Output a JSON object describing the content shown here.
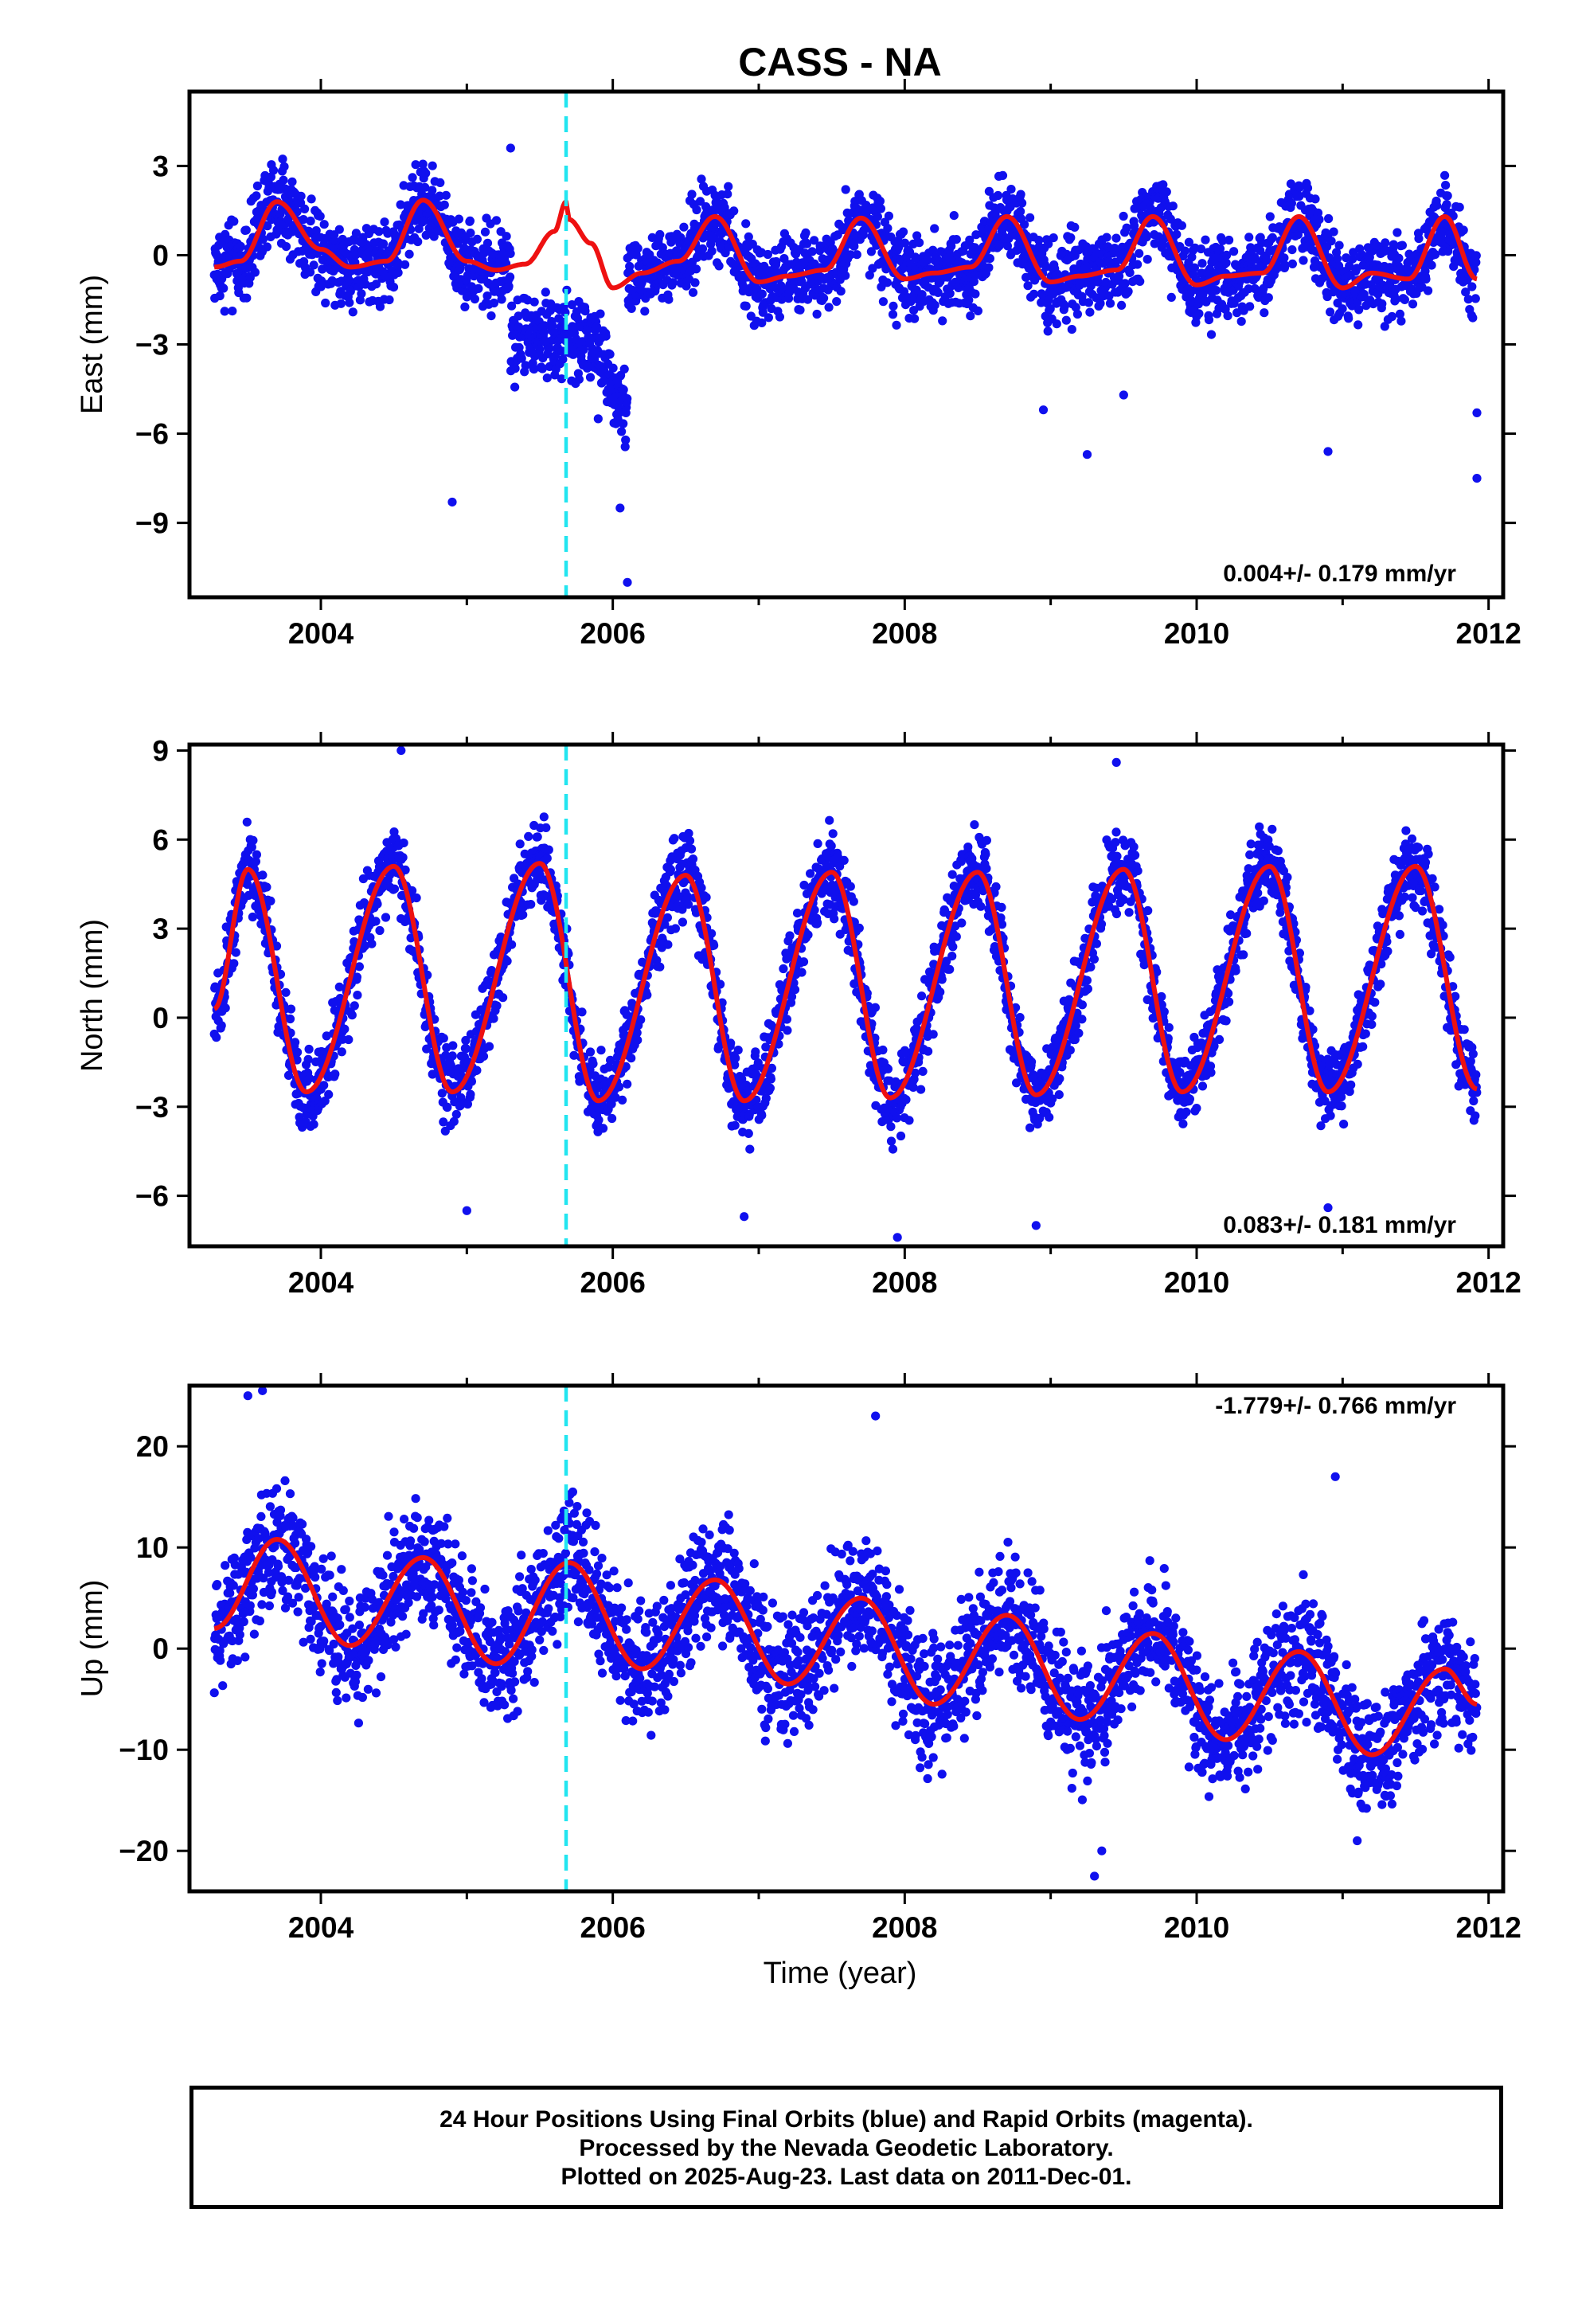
{
  "title": "CASS - NA",
  "xlabel": "Time (year)",
  "footer": {
    "line1": "24 Hour Positions Using Final Orbits (blue) and Rapid Orbits (magenta).",
    "line2": "Processed by the Nevada Geodetic Laboratory.",
    "line3": "Plotted on 2025-Aug-23. Last data on 2011-Dec-01."
  },
  "colors": {
    "data": "#1010ee",
    "model": "#ee1111",
    "event_line": "#22e5f0"
  },
  "chart_data": [
    {
      "type": "scatter",
      "panel": "east",
      "ylabel": "East (mm)",
      "rate_label": "0.004+/- 0.179 mm/yr",
      "xlim": [
        2003.1,
        2012.1
      ],
      "ylim": [
        -11.5,
        5.5
      ],
      "xticks": [
        "2004",
        "2006",
        "2008",
        "2010",
        "2012"
      ],
      "yticks": [
        "3",
        "0",
        "−3",
        "−6",
        "−9"
      ],
      "ytick_values": [
        3,
        0,
        -3,
        -6,
        -9
      ],
      "event_line_x": 2005.68,
      "data_range": [
        2003.27,
        2011.92
      ],
      "model_points": [
        [
          2003.27,
          -0.4
        ],
        [
          2003.45,
          -0.2
        ],
        [
          2003.7,
          1.8
        ],
        [
          2004.0,
          0.2
        ],
        [
          2004.2,
          -0.4
        ],
        [
          2004.45,
          -0.2
        ],
        [
          2004.7,
          1.85
        ],
        [
          2005.0,
          -0.2
        ],
        [
          2005.2,
          -0.5
        ],
        [
          2005.4,
          -0.3
        ],
        [
          2005.6,
          0.8
        ],
        [
          2005.68,
          1.8
        ],
        [
          2005.7,
          1.2
        ],
        [
          2005.85,
          0.4
        ],
        [
          2006.0,
          -1.1
        ],
        [
          2006.2,
          -0.6
        ],
        [
          2006.45,
          -0.2
        ],
        [
          2006.7,
          1.3
        ],
        [
          2007.0,
          -0.9
        ],
        [
          2007.2,
          -0.7
        ],
        [
          2007.45,
          -0.5
        ],
        [
          2007.7,
          1.25
        ],
        [
          2008.0,
          -0.8
        ],
        [
          2008.2,
          -0.6
        ],
        [
          2008.45,
          -0.4
        ],
        [
          2008.7,
          1.3
        ],
        [
          2009.0,
          -0.9
        ],
        [
          2009.2,
          -0.7
        ],
        [
          2009.45,
          -0.5
        ],
        [
          2009.7,
          1.3
        ],
        [
          2010.0,
          -1.0
        ],
        [
          2010.2,
          -0.7
        ],
        [
          2010.45,
          -0.6
        ],
        [
          2010.7,
          1.3
        ],
        [
          2011.0,
          -1.1
        ],
        [
          2011.2,
          -0.6
        ],
        [
          2011.45,
          -0.8
        ],
        [
          2011.7,
          1.3
        ],
        [
          2011.92,
          -0.8
        ]
      ],
      "outliers": [
        [
          2004.9,
          -8.3
        ],
        [
          2005.3,
          3.6
        ],
        [
          2005.9,
          -5.5
        ],
        [
          2006.05,
          -8.5
        ],
        [
          2006.1,
          -11.0
        ],
        [
          2008.95,
          -5.2
        ],
        [
          2009.25,
          -6.7
        ],
        [
          2009.5,
          -4.7
        ],
        [
          2010.9,
          -6.6
        ],
        [
          2011.92,
          -7.5
        ],
        [
          2011.92,
          -5.3
        ]
      ]
    },
    {
      "type": "scatter",
      "panel": "north",
      "ylabel": "North (mm)",
      "rate_label": "0.083+/- 0.181 mm/yr",
      "xlim": [
        2003.1,
        2012.1
      ],
      "ylim": [
        -7.7,
        9.2
      ],
      "xticks": [
        "2004",
        "2006",
        "2008",
        "2010",
        "2012"
      ],
      "yticks": [
        "9",
        "6",
        "3",
        "0",
        "−3",
        "−6"
      ],
      "ytick_values": [
        9,
        6,
        3,
        0,
        -3,
        -6
      ],
      "event_line_x": 2005.68,
      "data_range": [
        2003.27,
        2011.92
      ],
      "model_points": [
        [
          2003.27,
          0.3
        ],
        [
          2003.5,
          5.0
        ],
        [
          2003.9,
          -2.5
        ],
        [
          2004.5,
          5.1
        ],
        [
          2004.9,
          -2.5
        ],
        [
          2005.5,
          5.2
        ],
        [
          2005.9,
          -2.8
        ],
        [
          2006.5,
          4.8
        ],
        [
          2006.9,
          -2.8
        ],
        [
          2007.5,
          4.9
        ],
        [
          2007.9,
          -2.7
        ],
        [
          2008.5,
          4.9
        ],
        [
          2008.9,
          -2.6
        ],
        [
          2009.5,
          5.0
        ],
        [
          2009.9,
          -2.5
        ],
        [
          2010.5,
          5.1
        ],
        [
          2010.9,
          -2.5
        ],
        [
          2011.5,
          5.1
        ],
        [
          2011.92,
          -2.4
        ]
      ],
      "outliers": [
        [
          2004.55,
          9.0
        ],
        [
          2005.0,
          -6.5
        ],
        [
          2006.9,
          -6.7
        ],
        [
          2007.95,
          -7.4
        ],
        [
          2008.9,
          -7.0
        ],
        [
          2009.45,
          8.6
        ],
        [
          2010.9,
          -6.4
        ]
      ]
    },
    {
      "type": "scatter",
      "panel": "up",
      "ylabel": "Up (mm)",
      "rate_label": "-1.779+/- 0.766 mm/yr",
      "xlim": [
        2003.1,
        2012.1
      ],
      "ylim": [
        -24,
        26
      ],
      "xticks": [
        "2004",
        "2006",
        "2008",
        "2010",
        "2012"
      ],
      "yticks": [
        "20",
        "10",
        "0",
        "−10",
        "−20"
      ],
      "ytick_values": [
        20,
        10,
        0,
        -10,
        -20
      ],
      "event_line_x": 2005.68,
      "data_range": [
        2003.27,
        2011.92
      ],
      "model_points": [
        [
          2003.27,
          2.0
        ],
        [
          2003.7,
          10.8
        ],
        [
          2004.2,
          0.3
        ],
        [
          2004.7,
          9.0
        ],
        [
          2005.2,
          -1.5
        ],
        [
          2005.7,
          8.5
        ],
        [
          2006.2,
          -2.0
        ],
        [
          2006.7,
          6.8
        ],
        [
          2007.2,
          -3.5
        ],
        [
          2007.7,
          5.0
        ],
        [
          2008.2,
          -5.5
        ],
        [
          2008.7,
          3.3
        ],
        [
          2009.2,
          -7.0
        ],
        [
          2009.7,
          1.5
        ],
        [
          2010.2,
          -9.0
        ],
        [
          2010.7,
          -0.3
        ],
        [
          2011.2,
          -10.5
        ],
        [
          2011.7,
          -2.0
        ],
        [
          2011.92,
          -5.5
        ]
      ],
      "outliers": [
        [
          2003.5,
          25.0
        ],
        [
          2003.6,
          25.5
        ],
        [
          2007.8,
          23.0
        ],
        [
          2009.3,
          -22.5
        ],
        [
          2010.95,
          17.0
        ],
        [
          2009.35,
          -20.0
        ],
        [
          2011.1,
          -19.0
        ]
      ]
    }
  ]
}
